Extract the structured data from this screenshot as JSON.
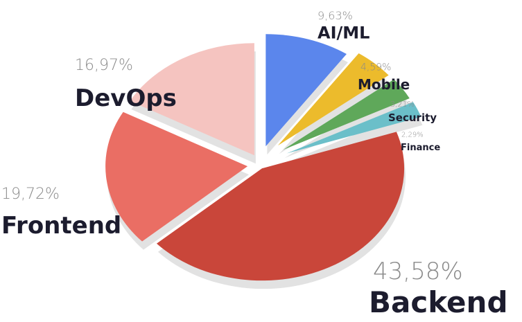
{
  "chart_data": {
    "type": "pie",
    "categories": [
      "AI/ML",
      "Mobile",
      "Security",
      "Finance",
      "Backend",
      "Frontend",
      "DevOps"
    ],
    "values": [
      9.63,
      4.59,
      3.21,
      2.29,
      43.58,
      19.72,
      16.97
    ],
    "value_labels": [
      "9,63%",
      "4,59%",
      "3,21%",
      "2,29%",
      "43,58%",
      "19,72%",
      "16,97%"
    ],
    "colors": [
      "#5b86ec",
      "#ecbb2c",
      "#5fa85a",
      "#6bbfc9",
      "#c9463a",
      "#ea6e64",
      "#f5c4c0"
    ]
  }
}
